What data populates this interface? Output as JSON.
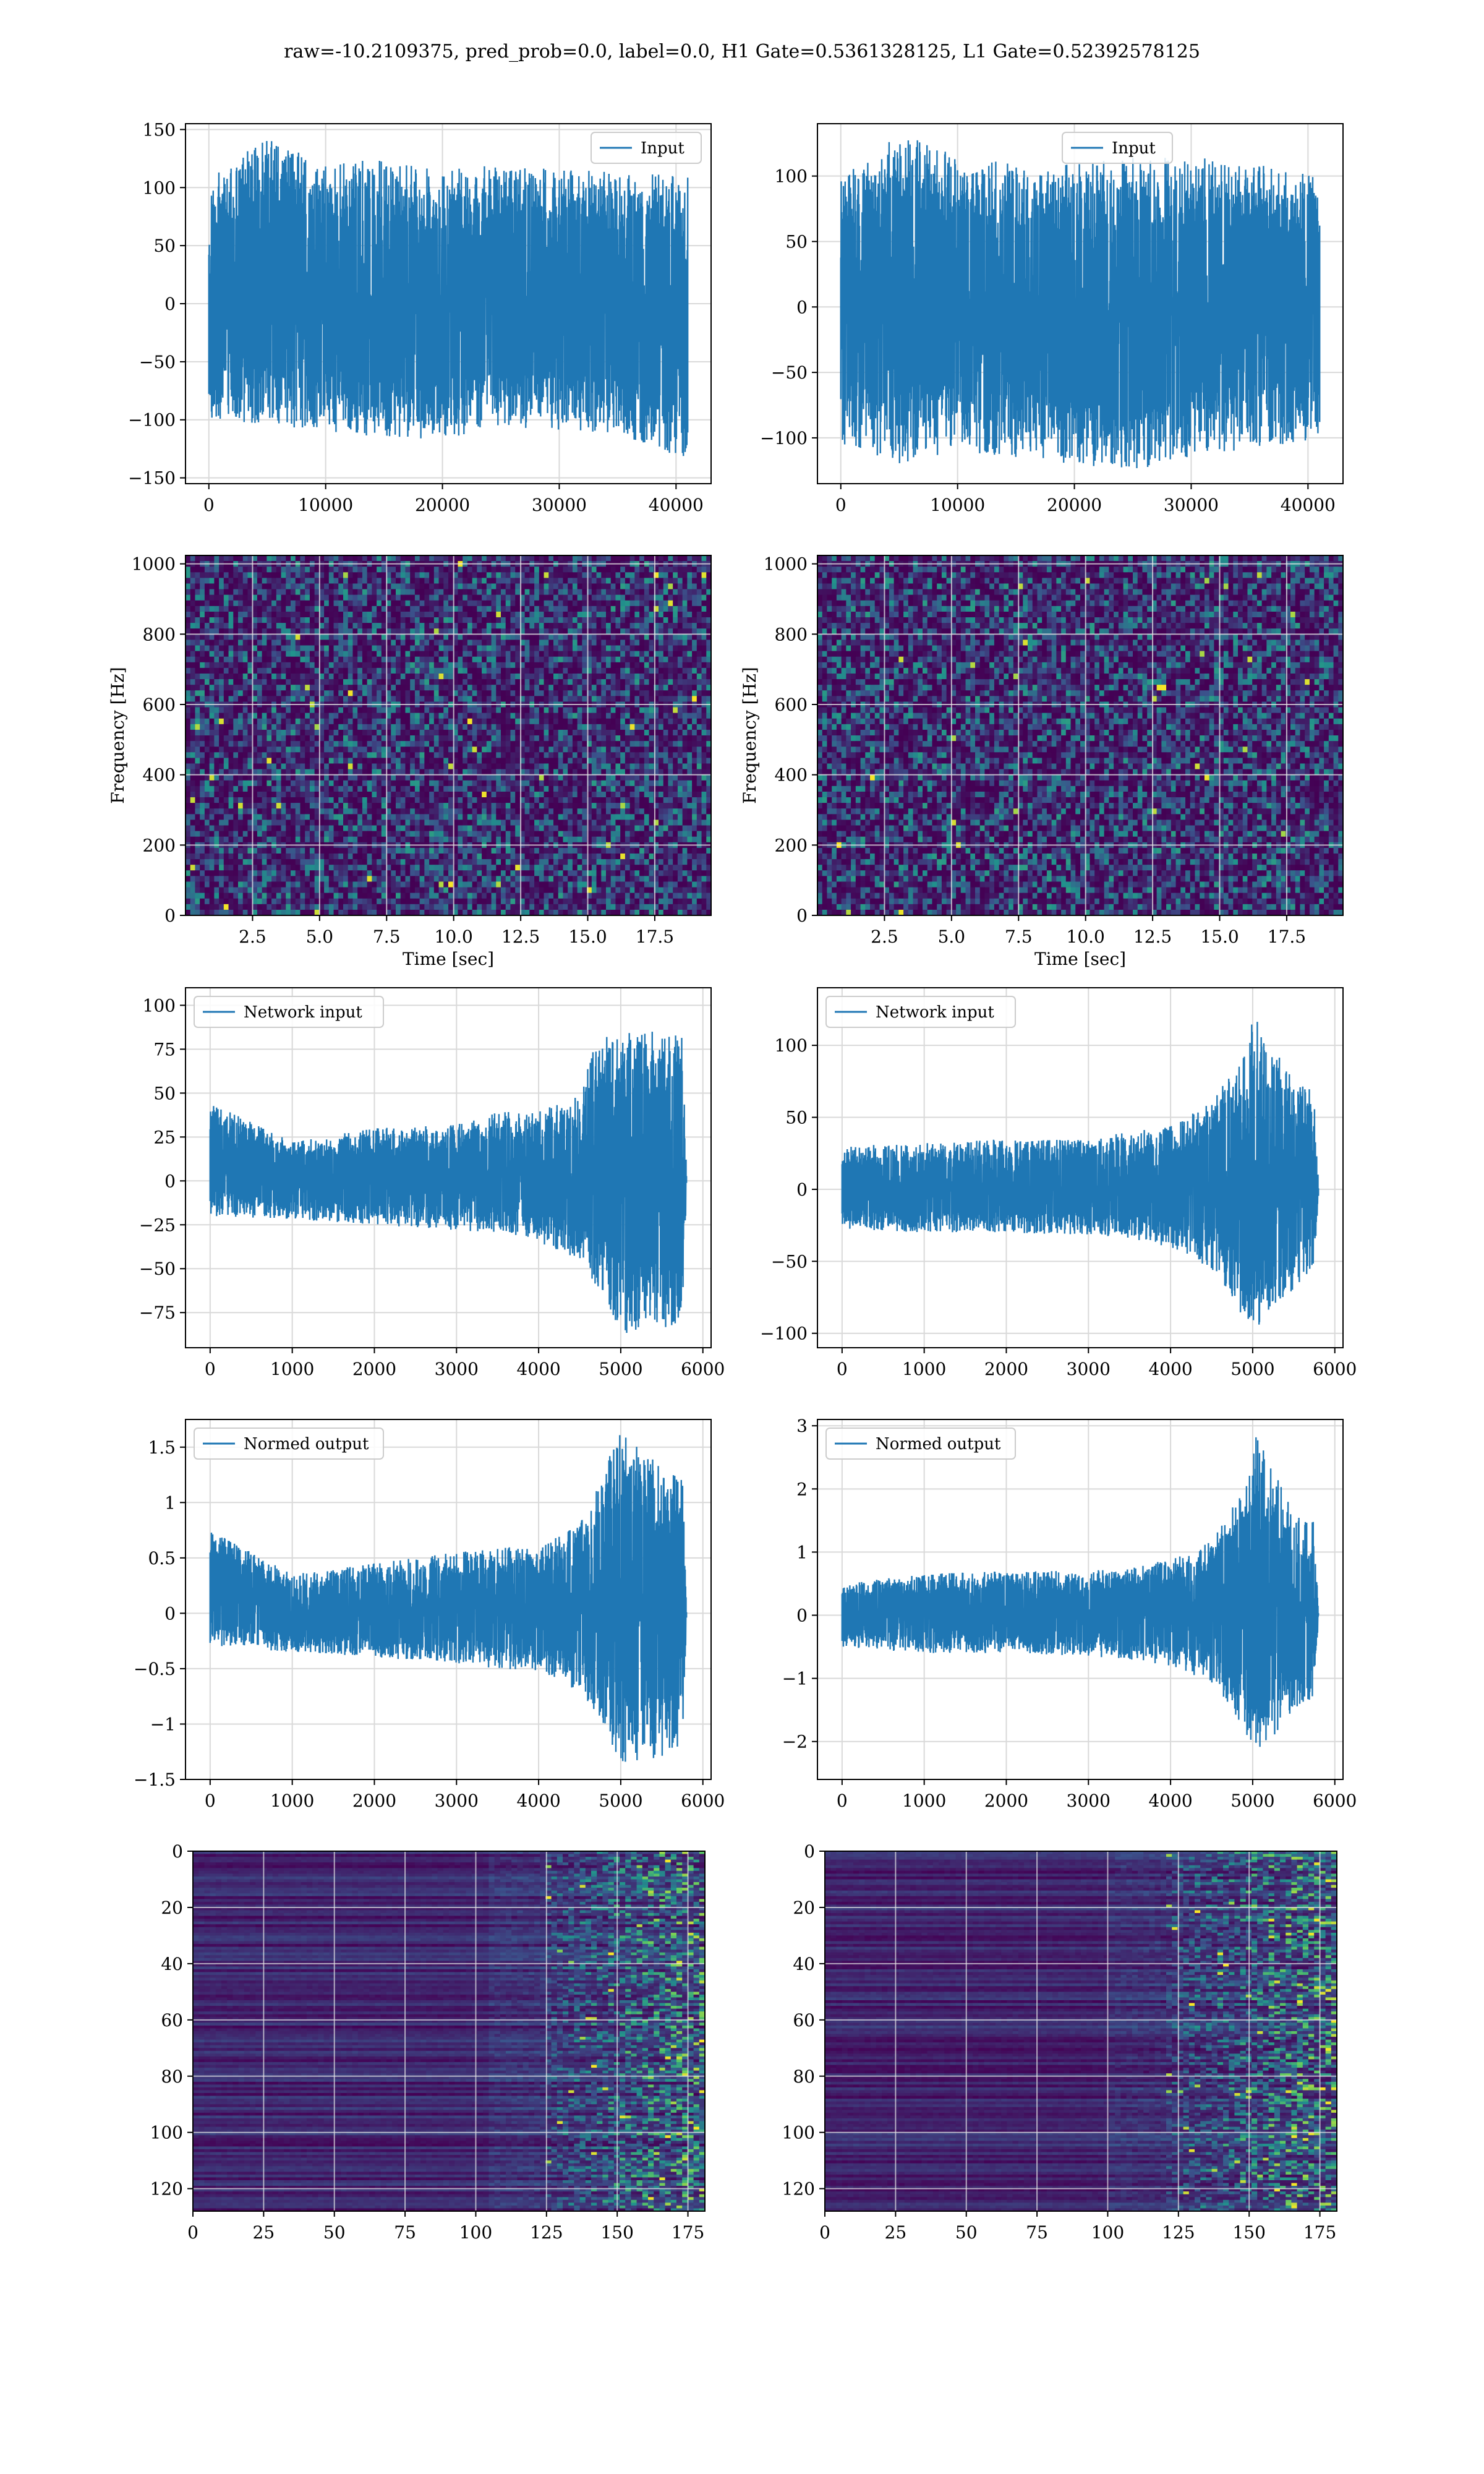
{
  "figure": {
    "suptitle": "raw=-10.2109375, pred_prob=0.0, label=0.0, H1 Gate=0.5361328125, L1 Gate=0.52392578125"
  },
  "colors": {
    "line": "#1f77b4",
    "grid": "#d9d9d9",
    "viridis_dark": "#440154",
    "viridis_blue": "#3b528b",
    "viridis_teal": "#21918c",
    "viridis_green": "#5ec962",
    "viridis_yellow": "#fde725"
  },
  "chart_data": [
    {
      "id": "h1-input",
      "type": "line",
      "legend": "Input",
      "legend_loc": "upper-right",
      "x": [
        0,
        41000
      ],
      "xlim": [
        -2000,
        43000
      ],
      "ylim": [
        -155,
        155
      ],
      "xticks": [
        0,
        10000,
        20000,
        30000,
        40000
      ],
      "yticks": [
        -150,
        -100,
        -50,
        0,
        50,
        100,
        150
      ],
      "envelope": [
        {
          "x": 0,
          "min": -100,
          "max": 110
        },
        {
          "x": 5000,
          "min": -105,
          "max": 143
        },
        {
          "x": 10000,
          "min": -110,
          "max": 120
        },
        {
          "x": 15000,
          "min": -115,
          "max": 125
        },
        {
          "x": 20000,
          "min": -118,
          "max": 115
        },
        {
          "x": 25000,
          "min": -105,
          "max": 120
        },
        {
          "x": 30000,
          "min": -110,
          "max": 115
        },
        {
          "x": 35000,
          "min": -112,
          "max": 115
        },
        {
          "x": 41000,
          "min": -135,
          "max": 110
        }
      ],
      "grid": true
    },
    {
      "id": "l1-input",
      "type": "line",
      "legend": "Input",
      "legend_loc": "upper-center",
      "x": [
        0,
        41000
      ],
      "xlim": [
        -2000,
        43000
      ],
      "ylim": [
        -135,
        140
      ],
      "xticks": [
        0,
        10000,
        20000,
        30000,
        40000
      ],
      "yticks": [
        -100,
        -50,
        0,
        50,
        100
      ],
      "envelope": [
        {
          "x": 0,
          "min": -105,
          "max": 100
        },
        {
          "x": 5000,
          "min": -120,
          "max": 133
        },
        {
          "x": 10000,
          "min": -110,
          "max": 115
        },
        {
          "x": 15000,
          "min": -115,
          "max": 110
        },
        {
          "x": 20000,
          "min": -120,
          "max": 110
        },
        {
          "x": 25000,
          "min": -125,
          "max": 115
        },
        {
          "x": 30000,
          "min": -115,
          "max": 115
        },
        {
          "x": 35000,
          "min": -110,
          "max": 110
        },
        {
          "x": 41000,
          "min": -100,
          "max": 100
        }
      ],
      "grid": true
    },
    {
      "id": "h1-spectrogram",
      "type": "heatmap",
      "colormap": "viridis",
      "xlabel": "Time [sec]",
      "ylabel": "Frequency [Hz]",
      "xlim": [
        0,
        19.6
      ],
      "ylim": [
        0,
        1024
      ],
      "xticks": [
        "2.5",
        "5.0",
        "7.5",
        "10.0",
        "12.5",
        "15.0",
        "17.5"
      ],
      "xtick_values": [
        2.5,
        5.0,
        7.5,
        10.0,
        12.5,
        15.0,
        17.5
      ],
      "yticks": [
        0,
        200,
        400,
        600,
        800,
        1000
      ],
      "grid": true
    },
    {
      "id": "l1-spectrogram",
      "type": "heatmap",
      "colormap": "viridis",
      "xlabel": "Time [sec]",
      "ylabel": "Frequency [Hz]",
      "xlim": [
        0,
        19.6
      ],
      "ylim": [
        0,
        1024
      ],
      "xticks": [
        "2.5",
        "5.0",
        "7.5",
        "10.0",
        "12.5",
        "15.0",
        "17.5"
      ],
      "xtick_values": [
        2.5,
        5.0,
        7.5,
        10.0,
        12.5,
        15.0,
        17.5
      ],
      "yticks": [
        0,
        200,
        400,
        600,
        800,
        1000
      ],
      "grid": true
    },
    {
      "id": "h1-network-input",
      "type": "line",
      "legend": "Network input",
      "legend_loc": "upper-left",
      "xlim": [
        -300,
        6100
      ],
      "ylim": [
        -95,
        110
      ],
      "xticks": [
        0,
        1000,
        2000,
        3000,
        4000,
        5000,
        6000
      ],
      "yticks": [
        -75,
        -50,
        -25,
        0,
        25,
        50,
        75,
        100
      ],
      "envelope": [
        {
          "x": 0,
          "min": -20,
          "max": 45
        },
        {
          "x": 1000,
          "min": -22,
          "max": 22
        },
        {
          "x": 2000,
          "min": -25,
          "max": 30
        },
        {
          "x": 3000,
          "min": -28,
          "max": 32
        },
        {
          "x": 3500,
          "min": -30,
          "max": 40
        },
        {
          "x": 4000,
          "min": -35,
          "max": 40
        },
        {
          "x": 4500,
          "min": -45,
          "max": 50
        },
        {
          "x": 4700,
          "min": -60,
          "max": 80
        },
        {
          "x": 5000,
          "min": -87,
          "max": 85
        },
        {
          "x": 5500,
          "min": -85,
          "max": 85
        },
        {
          "x": 5750,
          "min": -80,
          "max": 82
        },
        {
          "x": 5800,
          "min": -5,
          "max": 5
        }
      ],
      "grid": true
    },
    {
      "id": "l1-network-input",
      "type": "line",
      "legend": "Network input",
      "legend_loc": "upper-left",
      "xlim": [
        -300,
        6100
      ],
      "ylim": [
        -110,
        140
      ],
      "xticks": [
        0,
        1000,
        2000,
        3000,
        4000,
        5000,
        6000
      ],
      "yticks": [
        -100,
        -50,
        0,
        50,
        100
      ],
      "envelope": [
        {
          "x": 0,
          "min": -28,
          "max": 30
        },
        {
          "x": 1000,
          "min": -30,
          "max": 32
        },
        {
          "x": 2000,
          "min": -30,
          "max": 35
        },
        {
          "x": 3000,
          "min": -32,
          "max": 35
        },
        {
          "x": 3500,
          "min": -35,
          "max": 40
        },
        {
          "x": 4000,
          "min": -40,
          "max": 45
        },
        {
          "x": 4500,
          "min": -55,
          "max": 60
        },
        {
          "x": 4900,
          "min": -90,
          "max": 95
        },
        {
          "x": 5000,
          "min": -100,
          "max": 123
        },
        {
          "x": 5500,
          "min": -70,
          "max": 75
        },
        {
          "x": 5750,
          "min": -60,
          "max": 70
        },
        {
          "x": 5800,
          "min": -5,
          "max": 5
        }
      ],
      "grid": true
    },
    {
      "id": "h1-normed-output",
      "type": "line",
      "legend": "Normed output",
      "legend_loc": "upper-left",
      "xlim": [
        -300,
        6100
      ],
      "ylim": [
        -1.5,
        1.75
      ],
      "xticks": [
        0,
        1000,
        2000,
        3000,
        4000,
        5000,
        6000
      ],
      "yticks": [
        -1.5,
        -1.0,
        -0.5,
        0.0,
        0.5,
        1.0,
        1.5
      ],
      "envelope": [
        {
          "x": 0,
          "min": -0.3,
          "max": 0.75
        },
        {
          "x": 1000,
          "min": -0.35,
          "max": 0.35
        },
        {
          "x": 2000,
          "min": -0.4,
          "max": 0.45
        },
        {
          "x": 3000,
          "min": -0.45,
          "max": 0.55
        },
        {
          "x": 3500,
          "min": -0.5,
          "max": 0.6
        },
        {
          "x": 4000,
          "min": -0.55,
          "max": 0.6
        },
        {
          "x": 4500,
          "min": -0.7,
          "max": 0.8
        },
        {
          "x": 4700,
          "min": -0.9,
          "max": 1.2
        },
        {
          "x": 5000,
          "min": -1.35,
          "max": 1.65
        },
        {
          "x": 5500,
          "min": -1.3,
          "max": 1.35
        },
        {
          "x": 5750,
          "min": -1.2,
          "max": 1.3
        },
        {
          "x": 5800,
          "min": -0.05,
          "max": 0.05
        }
      ],
      "grid": true
    },
    {
      "id": "l1-normed-output",
      "type": "line",
      "legend": "Normed output",
      "legend_loc": "upper-left",
      "xlim": [
        -300,
        6100
      ],
      "ylim": [
        -2.6,
        3.1
      ],
      "xticks": [
        0,
        1000,
        2000,
        3000,
        4000,
        5000,
        6000
      ],
      "yticks": [
        -2,
        -1,
        0,
        1,
        2,
        3
      ],
      "envelope": [
        {
          "x": 0,
          "min": -0.5,
          "max": 0.5
        },
        {
          "x": 1000,
          "min": -0.6,
          "max": 0.65
        },
        {
          "x": 2000,
          "min": -0.6,
          "max": 0.7
        },
        {
          "x": 3000,
          "min": -0.65,
          "max": 0.7
        },
        {
          "x": 3500,
          "min": -0.7,
          "max": 0.75
        },
        {
          "x": 4000,
          "min": -0.8,
          "max": 0.9
        },
        {
          "x": 4500,
          "min": -1.1,
          "max": 1.2
        },
        {
          "x": 4900,
          "min": -1.8,
          "max": 2.0
        },
        {
          "x": 5050,
          "min": -2.3,
          "max": 2.9
        },
        {
          "x": 5500,
          "min": -1.5,
          "max": 1.6
        },
        {
          "x": 5750,
          "min": -1.3,
          "max": 1.5
        },
        {
          "x": 5800,
          "min": -0.05,
          "max": 0.05
        }
      ],
      "grid": true
    },
    {
      "id": "h1-gate-map",
      "type": "heatmap",
      "colormap": "viridis",
      "xlim": [
        0,
        181
      ],
      "ylim": [
        128,
        0
      ],
      "xticks": [
        0,
        25,
        50,
        75,
        100,
        125,
        150,
        175
      ],
      "yticks": [
        0,
        20,
        40,
        60,
        80,
        100,
        120
      ],
      "onset": 125,
      "grid": true
    },
    {
      "id": "l1-gate-map",
      "type": "heatmap",
      "colormap": "viridis",
      "xlim": [
        0,
        181
      ],
      "ylim": [
        128,
        0
      ],
      "xticks": [
        0,
        25,
        50,
        75,
        100,
        125,
        150,
        175
      ],
      "yticks": [
        0,
        20,
        40,
        60,
        80,
        100,
        120
      ],
      "onset": 120,
      "grid": true
    }
  ]
}
